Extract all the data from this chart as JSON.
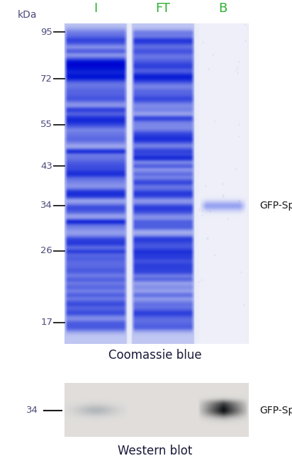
{
  "bg_color": "#ffffff",
  "lane_labels": [
    "I",
    "FT",
    "B"
  ],
  "lane_label_color": "#2db030",
  "marker_sizes": [
    95,
    72,
    55,
    43,
    34,
    26,
    17
  ],
  "marker_color": "#1a1a1a",
  "kda_color": "#4a4a7a",
  "coomassie_title": "Coomassie blue",
  "western_title": "Western blot",
  "gfp_label": "GFP-Spot",
  "annotation_color": "#1a1a1a",
  "log_mw_min": 2.833,
  "log_mw_max": 4.554
}
